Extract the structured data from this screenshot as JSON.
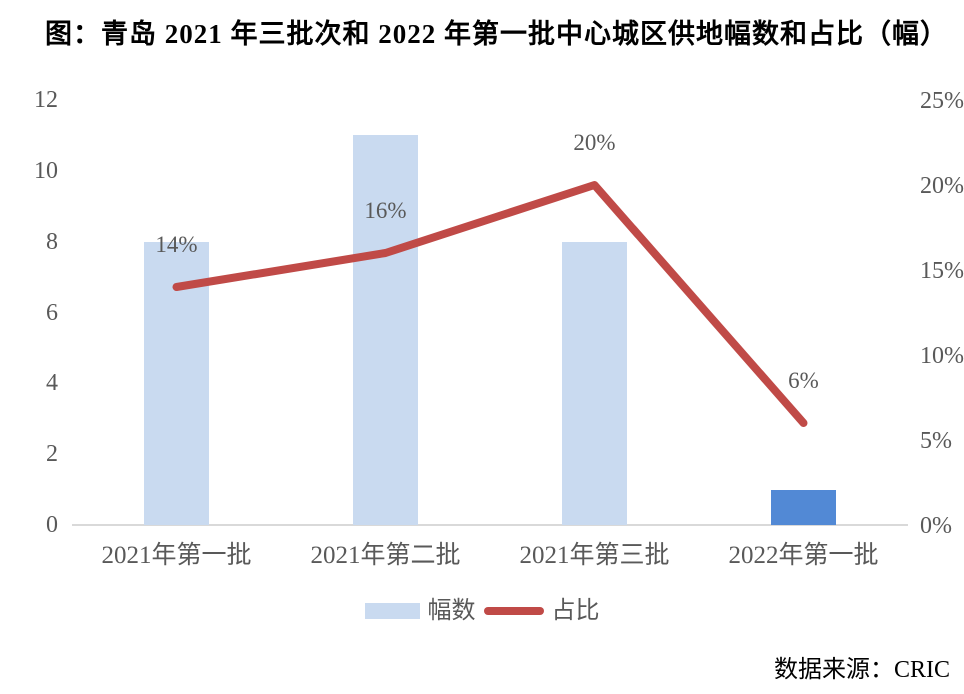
{
  "title": "图：青岛 2021 年三批次和 2022 年第一批中心城区供地幅数和占比（幅）",
  "source": "数据来源：CRIC",
  "legend": [
    {
      "label": "幅数",
      "swatch": "bar"
    },
    {
      "label": "占比",
      "swatch": "line"
    }
  ],
  "colors": {
    "bar": "#c9daf0",
    "bar_highlight": "#5289d5",
    "line": "#c04a47",
    "axis_text": "#595959",
    "axis_line": "#d9d9d9",
    "title_text": "#000000"
  },
  "chart_data": {
    "type": "bar",
    "title": "图：青岛 2021 年三批次和 2022 年第一批中心城区供地幅数和占比（幅）",
    "categories": [
      "2021年第一批",
      "2021年第二批",
      "2021年第三批",
      "2022年第一批"
    ],
    "series": [
      {
        "name": "幅数",
        "kind": "bar",
        "axis": "left",
        "values": [
          8,
          11,
          8,
          1
        ],
        "bar_colors": [
          "#c9daf0",
          "#c9daf0",
          "#c9daf0",
          "#5289d5"
        ]
      },
      {
        "name": "占比",
        "kind": "line",
        "axis": "right",
        "values": [
          14,
          16,
          20,
          6
        ],
        "point_labels": [
          "14%",
          "16%",
          "20%",
          "6%"
        ],
        "color": "#c04a47"
      }
    ],
    "left_axis": {
      "min": 0,
      "max": 12,
      "ticks": [
        0,
        2,
        4,
        6,
        8,
        10,
        12
      ]
    },
    "right_axis": {
      "min": 0,
      "max": 25,
      "ticks": [
        0,
        5,
        10,
        15,
        20,
        25
      ],
      "tick_labels": [
        "0%",
        "5%",
        "10%",
        "15%",
        "20%",
        "25%"
      ]
    },
    "grid": false,
    "legend_position": "bottom",
    "source": "数据来源：CRIC"
  }
}
